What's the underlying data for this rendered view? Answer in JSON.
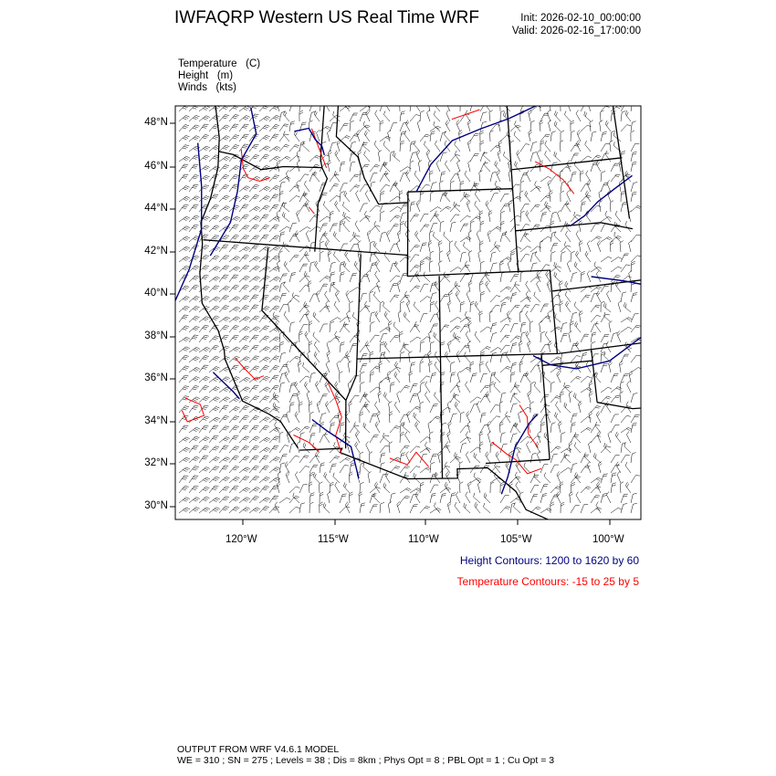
{
  "header": {
    "title": "IWFAQRP Western US Real Time WRF",
    "init": "Init: 2026-02-10_00:00:00",
    "valid": "Valid: 2026-02-16_17:00:00"
  },
  "fields": [
    {
      "name": "Temperature",
      "unit": "(C)"
    },
    {
      "name": "Height",
      "unit": "(m)"
    },
    {
      "name": "Winds",
      "unit": "(kts)"
    }
  ],
  "map": {
    "lat_labels": [
      "48°N",
      "46°N",
      "44°N",
      "42°N",
      "40°N",
      "38°N",
      "36°N",
      "34°N",
      "32°N",
      "30°N"
    ],
    "lon_labels": [
      "120°W",
      "115°W",
      "110°W",
      "105°W",
      "100°W"
    ],
    "colors": {
      "height": "#000080",
      "temperature": "#ff0000",
      "boundaries": "#000000",
      "wind_barbs": "#000000"
    }
  },
  "legend": {
    "height": "Height Contours: 1200 to 1620 by 60",
    "temperature": "Temperature Contours: -15 to 25 by 5"
  },
  "footer": {
    "line1": "OUTPUT FROM WRF V4.6.1 MODEL",
    "line2": "WE = 310 ; SN = 275 ; Levels = 38 ; Dis = 8km ; Phys Opt = 8 ; PBL Opt = 1 ; Cu Opt = 3"
  }
}
